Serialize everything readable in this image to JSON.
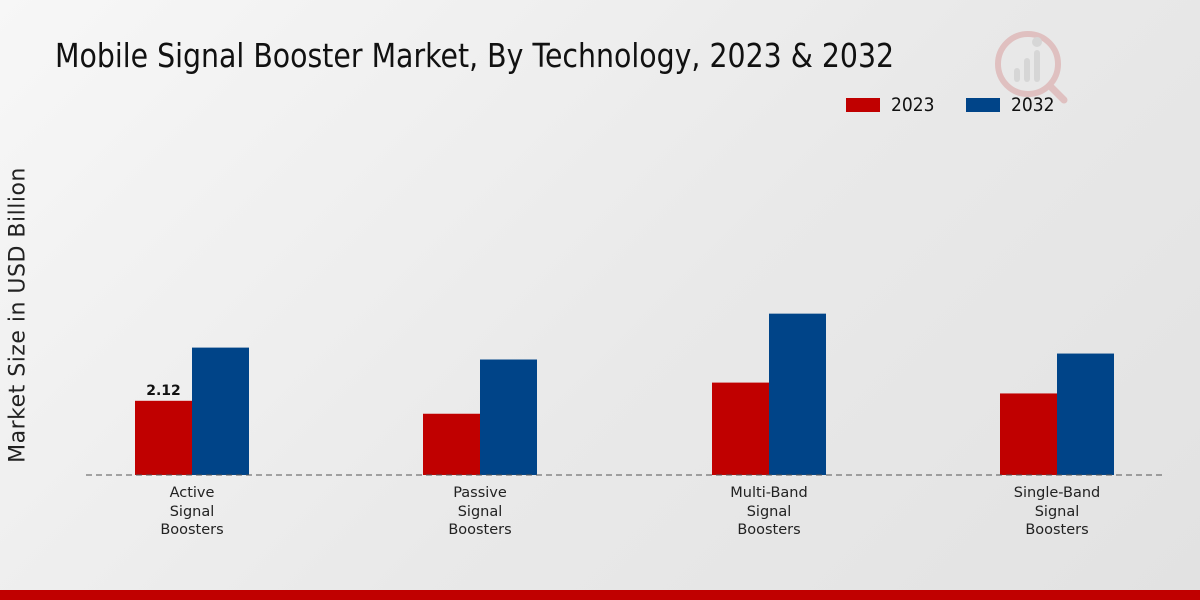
{
  "chart_data": {
    "type": "bar",
    "title": "Mobile Signal Booster Market, By Technology, 2023 & 2032",
    "xlabel": "",
    "ylabel": "Market Size in USD Billion",
    "categories": [
      [
        "Active",
        "Signal",
        "Boosters"
      ],
      [
        "Passive",
        "Signal",
        "Boosters"
      ],
      [
        "Multi-Band",
        "Signal",
        "Boosters"
      ],
      [
        "Single-Band",
        "Signal",
        "Boosters"
      ]
    ],
    "series": [
      {
        "name": "2023",
        "color": "#c00000",
        "values": [
          2.12,
          1.75,
          2.64,
          2.33
        ]
      },
      {
        "name": "2032",
        "color": "#004488",
        "values": [
          3.64,
          3.3,
          4.61,
          3.47
        ]
      }
    ],
    "data_labels": [
      {
        "series": 0,
        "index": 0,
        "text": "2.12"
      }
    ],
    "ylim": [
      0,
      10
    ],
    "grid": false,
    "legend_position": "top-right"
  },
  "colors": {
    "accent_bar": "#c00000",
    "baseline": "#555555"
  }
}
